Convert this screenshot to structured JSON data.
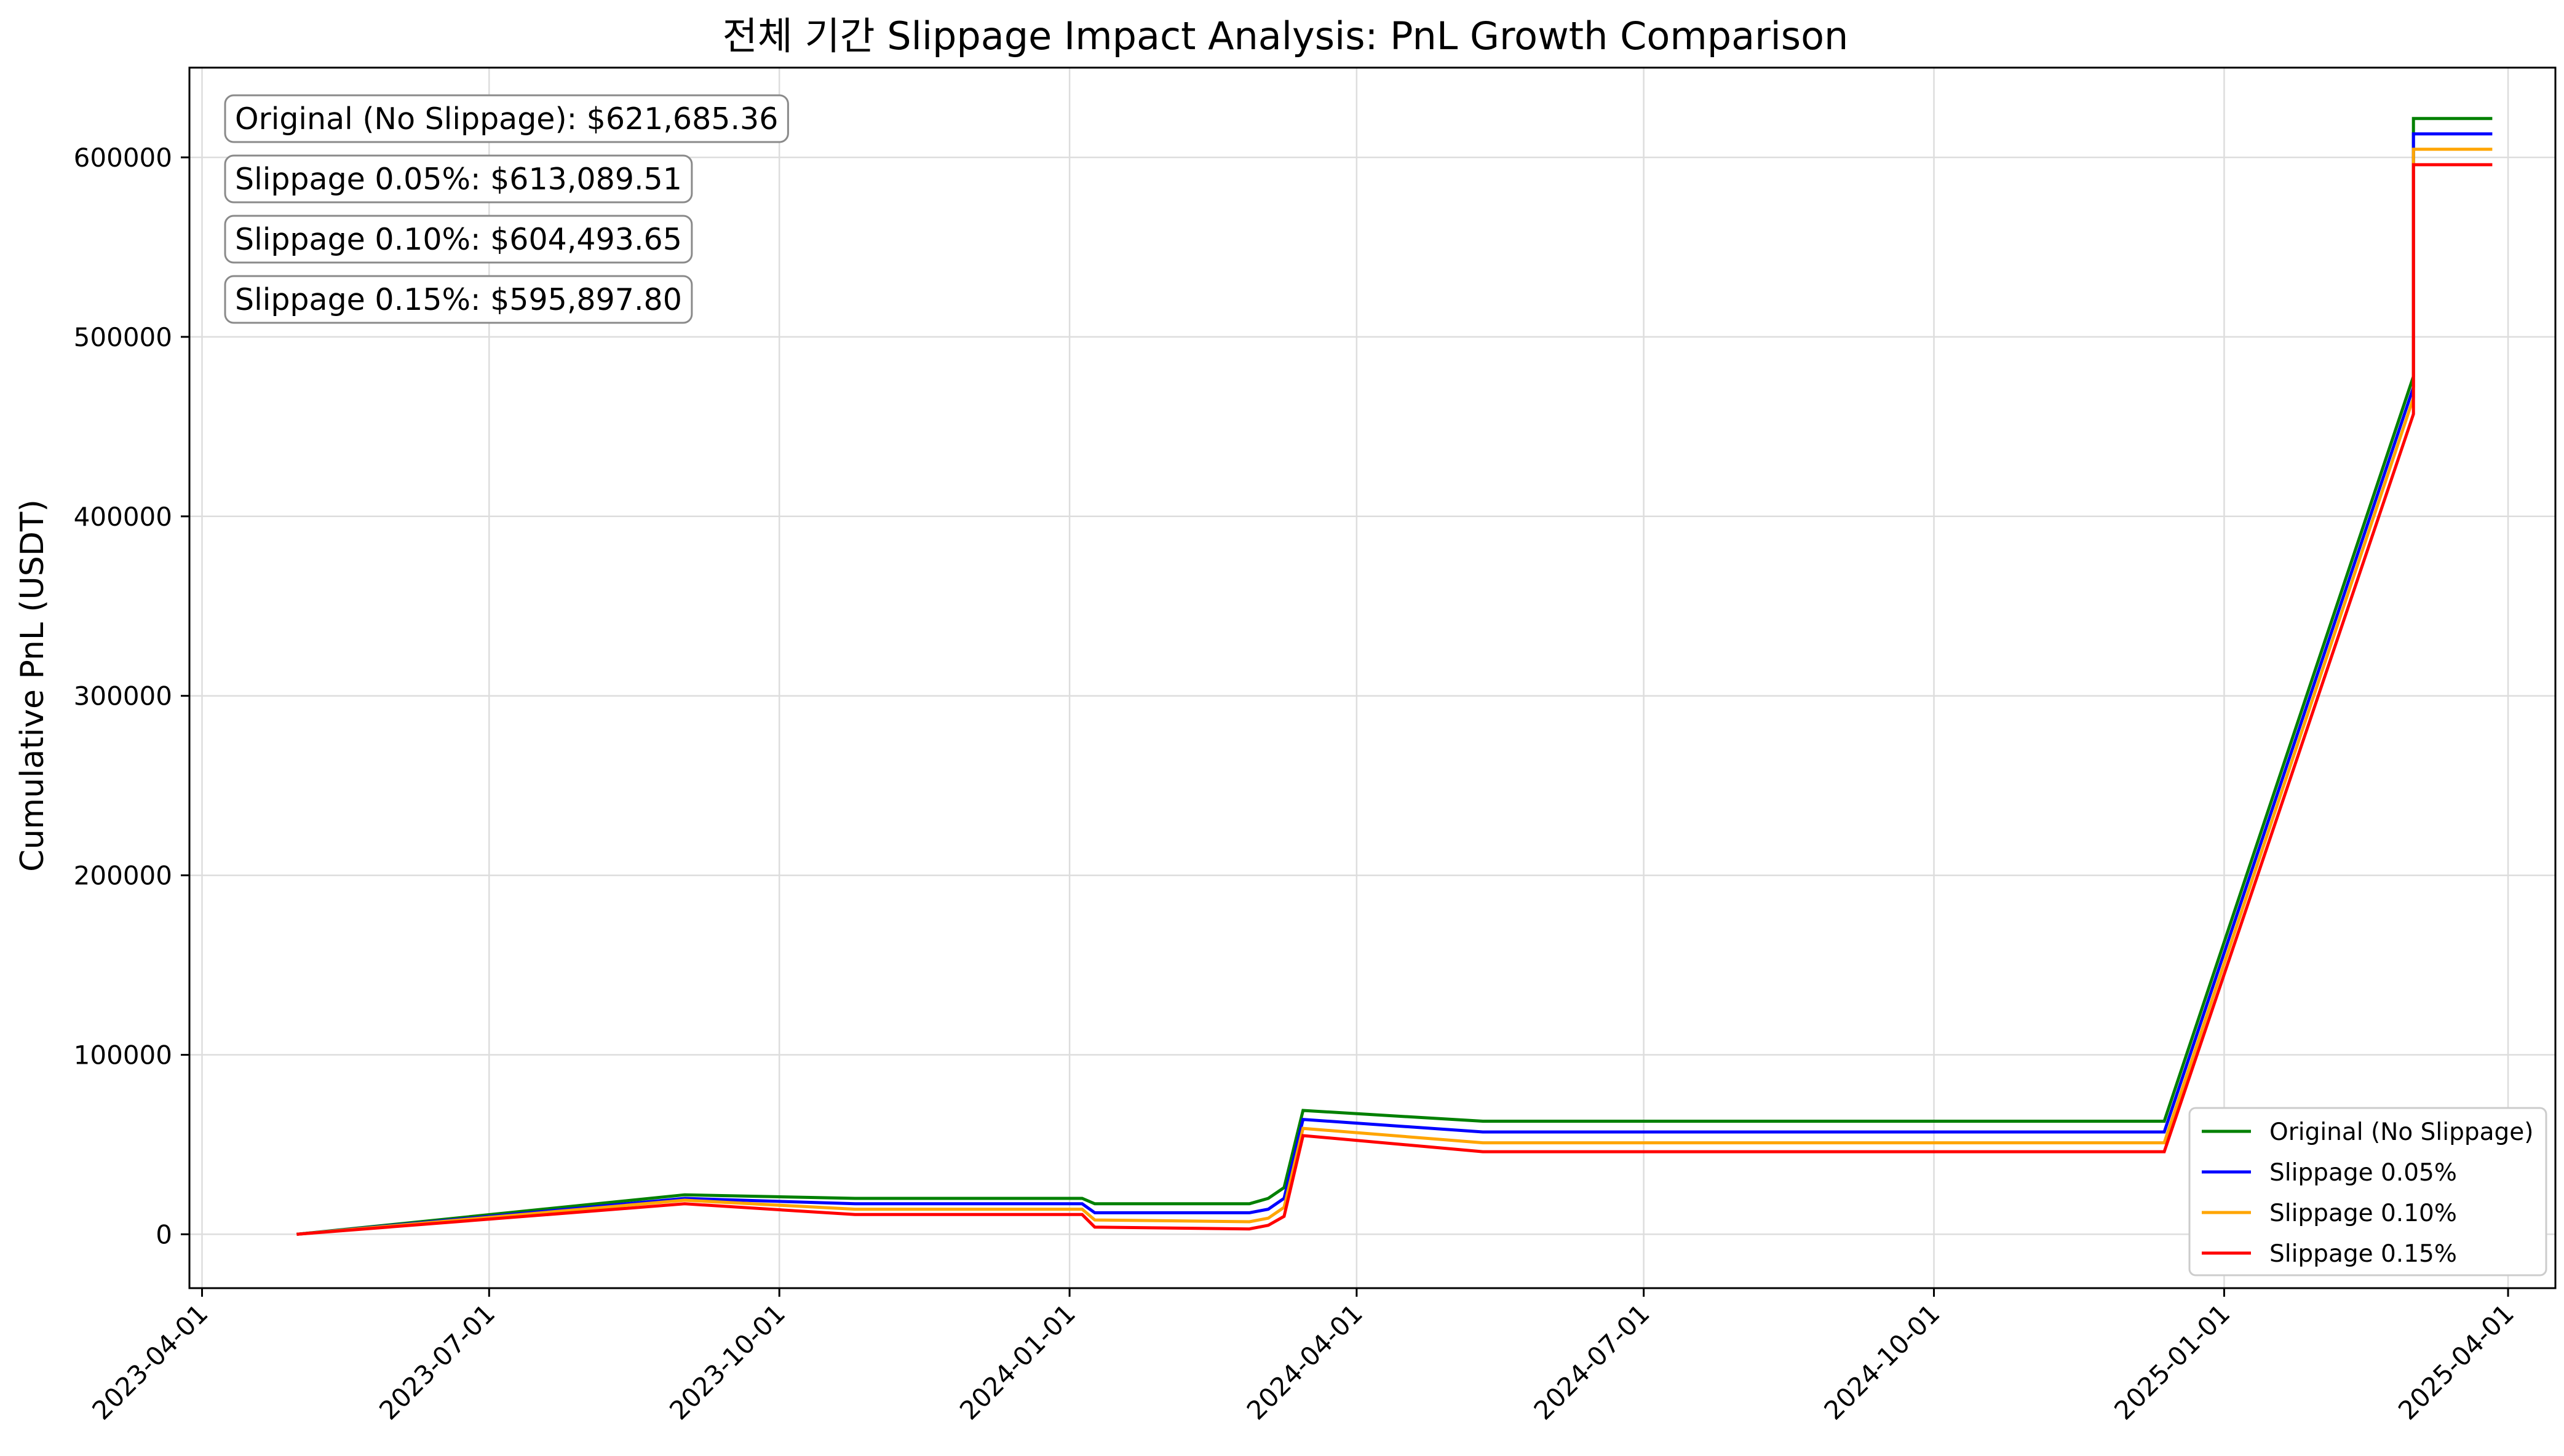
{
  "chart_data": {
    "type": "line",
    "title": "전체 기간 Slippage Impact Analysis: PnL Growth Comparison",
    "xlabel": "",
    "ylabel": "Cumulative PnL (USDT)",
    "xlim": [
      "2023-03-28",
      "2025-04-16"
    ],
    "ylim": [
      -30000,
      650000
    ],
    "x_ticks": [
      "2023-04-01",
      "2023-07-01",
      "2023-10-01",
      "2024-01-01",
      "2024-04-01",
      "2024-07-01",
      "2024-10-01",
      "2025-01-01",
      "2025-04-01"
    ],
    "y_ticks": [
      0,
      100000,
      200000,
      300000,
      400000,
      500000,
      600000
    ],
    "grid": true,
    "legend_position": "lower-right",
    "annotations": [
      "Original (No Slippage): $621,685.36",
      "Slippage 0.05%: $613,089.51",
      "Slippage 0.10%: $604,493.65",
      "Slippage 0.15%: $595,897.80"
    ],
    "x": [
      "2023-05-01",
      "2023-09-01",
      "2023-10-25",
      "2024-01-05",
      "2024-01-09",
      "2024-02-27",
      "2024-03-04",
      "2024-03-09",
      "2024-03-15",
      "2024-05-11",
      "2024-12-13",
      "2025-03-02",
      "2025-03-02",
      "2025-03-27"
    ],
    "series": [
      {
        "name": "Original (No Slippage)",
        "color": "#008000",
        "values": [
          0,
          22000,
          20000,
          20000,
          17000,
          17000,
          20000,
          26000,
          69000,
          63000,
          63000,
          478000,
          621685.36,
          621685.36
        ]
      },
      {
        "name": "Slippage 0.05%",
        "color": "#0000ff",
        "values": [
          0,
          20000,
          17000,
          17000,
          12000,
          12000,
          14000,
          20000,
          64000,
          57000,
          57000,
          472000,
          613089.51,
          613089.51
        ]
      },
      {
        "name": "Slippage 0.10%",
        "color": "#ffa500",
        "values": [
          0,
          19000,
          14000,
          14000,
          8000,
          7000,
          9000,
          15000,
          59000,
          51000,
          51000,
          466000,
          604493.65,
          604493.65
        ]
      },
      {
        "name": "Slippage 0.15%",
        "color": "#ff0000",
        "values": [
          0,
          17000,
          11000,
          11000,
          4000,
          3000,
          5000,
          10000,
          55000,
          46000,
          46000,
          457000,
          595897.8,
          595897.8
        ]
      }
    ]
  }
}
